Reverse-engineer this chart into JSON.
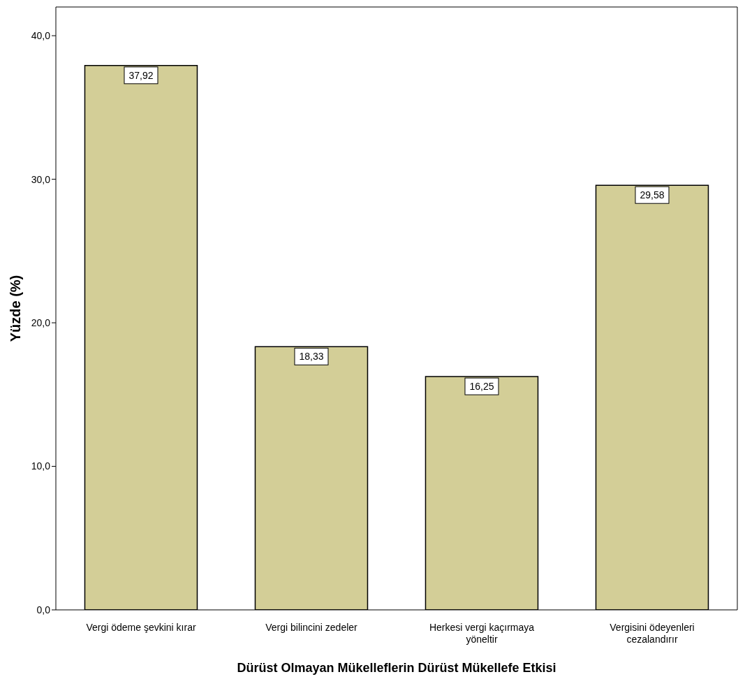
{
  "chart_data": {
    "type": "bar",
    "xlabel": "Dürüst Olmayan Mükelleflerin Dürüst Mükellefe Etkisi",
    "ylabel": "Yüzde (%)",
    "categories": [
      "Vergi ödeme şevkini kırar",
      "Vergi bilincini zedeler",
      "Herkesi vergi kaçırmaya yöneltir",
      "Vergisini ödeyenleri cezalandırır"
    ],
    "values": [
      37.92,
      18.33,
      16.25,
      29.58
    ],
    "value_labels": [
      "37,92",
      "18,33",
      "16,25",
      "29,58"
    ],
    "color": "#d3ce97",
    "ylim": [
      0,
      42
    ],
    "yticks": [
      {
        "value": 0,
        "label": "0,0"
      },
      {
        "value": 10,
        "label": "10,0"
      },
      {
        "value": 20,
        "label": "20,0"
      },
      {
        "value": 30,
        "label": "30,0"
      },
      {
        "value": 40,
        "label": "40,0"
      }
    ],
    "grid": false
  }
}
